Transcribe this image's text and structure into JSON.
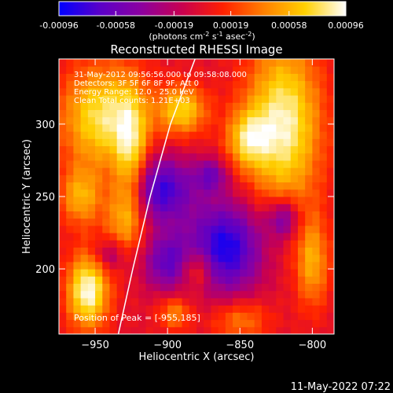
{
  "colorbar": {
    "tick_labels": [
      "-0.00096",
      "-0.00058",
      "-0.00019",
      "0.00019",
      "0.00058",
      "0.00096"
    ],
    "tick_values": [
      -0.00096,
      -0.00058,
      -0.00019,
      0.00019,
      0.00058,
      0.00096
    ],
    "range": [
      -0.00096,
      0.00096
    ],
    "units_label": "(photons cm",
    "units_exp1": "-2",
    "units_mid": " s",
    "units_exp2": "-1",
    "units_mid2": " asec",
    "units_exp3": "-2",
    "units_close": ")",
    "colors": [
      "#0000ff",
      "#5a00c8",
      "#8c00a0",
      "#c80050",
      "#ff2000",
      "#ff8000",
      "#ffd000",
      "#ffffff"
    ]
  },
  "chart_data": {
    "type": "heatmap",
    "title": "Reconstructed RHESSI Image",
    "xlabel": "Heliocentric X (arcsec)",
    "ylabel": "Heliocentric Y (arcsec)",
    "xlim": [
      -975,
      -785
    ],
    "ylim": [
      155,
      345
    ],
    "x_ticks": [
      -950,
      -900,
      -850,
      -800
    ],
    "x_tick_labels": [
      "−950",
      "−900",
      "−850",
      "−800"
    ],
    "y_ticks": [
      200,
      250,
      300
    ],
    "y_tick_labels": [
      "200",
      "250",
      "300"
    ],
    "annotations": [
      "31-May-2012 09:56:56.000 to 09:58:08.000",
      "Detectors: 3F 5F 6F 8F 9F, Att 0",
      "Energy Range: 12.0 - 25.0 keV",
      "Clean    Total counts: 1.21E+03"
    ],
    "peak_label": "Position of Peak = [-955,185]",
    "peak_position": [
      -955,
      185
    ],
    "limb_curve": [
      [
        -934,
        155
      ],
      [
        -924,
        200
      ],
      [
        -912,
        250
      ],
      [
        -898,
        300
      ],
      [
        -881,
        345
      ]
    ],
    "blobs": [
      {
        "x": -955,
        "y": 185,
        "sx": 10,
        "sy": 18,
        "a": 0.00096
      },
      {
        "x": -945,
        "y": 305,
        "sx": 20,
        "sy": 25,
        "a": 0.0008
      },
      {
        "x": -960,
        "y": 250,
        "sx": 10,
        "sy": 14,
        "a": 0.00055
      },
      {
        "x": -925,
        "y": 280,
        "sx": 8,
        "sy": 30,
        "a": 0.0006
      },
      {
        "x": -930,
        "y": 235,
        "sx": 10,
        "sy": 18,
        "a": 0.0005
      },
      {
        "x": -890,
        "y": 310,
        "sx": 12,
        "sy": 12,
        "a": 0.0007
      },
      {
        "x": -820,
        "y": 300,
        "sx": 18,
        "sy": 40,
        "a": 0.0009
      },
      {
        "x": -845,
        "y": 290,
        "sx": 10,
        "sy": 14,
        "a": 0.0006
      },
      {
        "x": -880,
        "y": 200,
        "sx": 8,
        "sy": 10,
        "a": 0.0005
      },
      {
        "x": -800,
        "y": 205,
        "sx": 8,
        "sy": 22,
        "a": 0.00055
      },
      {
        "x": -895,
        "y": 170,
        "sx": 8,
        "sy": 8,
        "a": 0.00045
      },
      {
        "x": -850,
        "y": 165,
        "sx": 14,
        "sy": 10,
        "a": 0.0004
      },
      {
        "x": -905,
        "y": 255,
        "sx": 16,
        "sy": 16,
        "a": -0.0008
      },
      {
        "x": -860,
        "y": 215,
        "sx": 18,
        "sy": 22,
        "a": -0.0009
      },
      {
        "x": -900,
        "y": 205,
        "sx": 12,
        "sy": 14,
        "a": -0.0006
      },
      {
        "x": -820,
        "y": 235,
        "sx": 8,
        "sy": 10,
        "a": -0.0006
      },
      {
        "x": -940,
        "y": 210,
        "sx": 8,
        "sy": 8,
        "a": -0.0004
      },
      {
        "x": -870,
        "y": 265,
        "sx": 8,
        "sy": 8,
        "a": -0.0005
      }
    ]
  },
  "footer": {
    "timestamp": "11-May-2022 07:22"
  }
}
